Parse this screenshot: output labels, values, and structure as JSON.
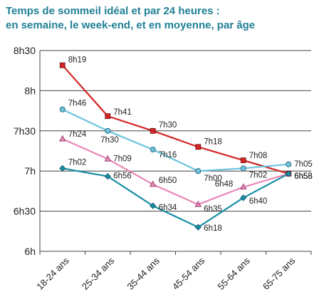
{
  "chart_data": {
    "type": "line",
    "title_line1": "Temps de sommeil idéal et par 24 heures :",
    "title_line2": "en semaine, le week-end, et en moyenne, par âge",
    "categories": [
      "18-24 ans",
      "25-34 ans",
      "35-44 ans",
      "45-54 ans",
      "55-64 ans",
      "65-75 ans"
    ],
    "y_ticks": [
      "6h",
      "6h30",
      "7h",
      "7h30",
      "8h",
      "8h30"
    ],
    "ylim_minutes": [
      360,
      510
    ],
    "grid": true,
    "series": [
      {
        "color": "#d42525",
        "marker": "square",
        "values_minutes": [
          499,
          461,
          450,
          438,
          428,
          418
        ],
        "labels": [
          "8h19",
          "7h41",
          "7h30",
          "7h18",
          "7h08",
          "6h58"
        ]
      },
      {
        "color": "#6cc4e0",
        "marker": "circle",
        "values_minutes": [
          466,
          450,
          436,
          420,
          422,
          425
        ],
        "labels": [
          "7h46",
          "7h30",
          "7h16",
          "7h00",
          "7h02",
          "7h05"
        ]
      },
      {
        "color": "#e888b8",
        "marker": "triangle",
        "values_minutes": [
          444,
          429,
          410,
          395,
          408,
          418
        ],
        "labels": [
          "7h24",
          "7h09",
          "6h50",
          "6h35",
          "6h48",
          "6h58"
        ]
      },
      {
        "color": "#1a8fa8",
        "marker": "diamond",
        "values_minutes": [
          422,
          416,
          394,
          378,
          400,
          418
        ],
        "labels": [
          "7h02",
          "6h56",
          "6h34",
          "6h18",
          "6h40",
          "6h58"
        ]
      }
    ]
  }
}
